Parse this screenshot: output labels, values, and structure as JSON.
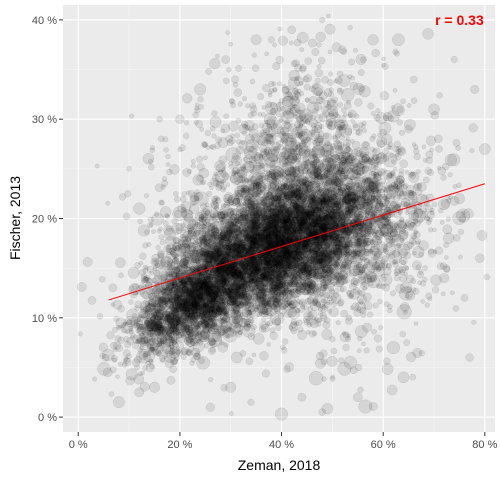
{
  "chart_data": {
    "type": "scatter",
    "title": "",
    "xlabel": "Zeman, 2018",
    "ylabel": "Fischer, 2013",
    "xlim": [
      -3,
      82
    ],
    "ylim": [
      -1.5,
      41.5
    ],
    "x_ticks": [
      0,
      20,
      40,
      60,
      80
    ],
    "x_tick_labels": [
      "0 %",
      "20 %",
      "40 %",
      "60 %",
      "80 %"
    ],
    "y_ticks": [
      0,
      10,
      20,
      30,
      40
    ],
    "y_tick_labels": [
      "0 %",
      "10 %",
      "20 %",
      "30 %",
      "40 %"
    ],
    "grid": true,
    "legend": "none",
    "annotation": {
      "text": "r = 0.33",
      "x": 75,
      "y": 40,
      "color": "#ff0000"
    },
    "trend_line": {
      "x": [
        6,
        80
      ],
      "y": [
        11.8,
        23.5
      ],
      "color": "#ff0000"
    },
    "point_style": {
      "color": "#000000",
      "opacity": 0.09,
      "outline_opacity": 0.12
    },
    "point_clusters": [
      {
        "cx": 40,
        "cy": 17.5,
        "sx": 11,
        "sy": 3.8,
        "rho": 0.5,
        "n": 5200,
        "seed": 11
      },
      {
        "cx": 22,
        "cy": 11,
        "sx": 6,
        "sy": 2.6,
        "rho": 0.6,
        "n": 1300,
        "seed": 23
      },
      {
        "cx": 44,
        "cy": 27,
        "sx": 8,
        "sy": 5,
        "rho": 0.15,
        "n": 650,
        "seed": 37
      },
      {
        "cx": 55,
        "cy": 17,
        "sx": 10,
        "sy": 6,
        "rho": 0.1,
        "n": 650,
        "seed": 53
      },
      {
        "cx": 30,
        "cy": 22,
        "sx": 10,
        "sy": 6,
        "rho": 0.2,
        "n": 380,
        "seed": 71
      }
    ],
    "outlier_points": [
      {
        "x": 7,
        "y": 7.2
      },
      {
        "x": 8,
        "y": 1.5
      },
      {
        "x": 12,
        "y": 2.5
      },
      {
        "x": 15,
        "y": 3
      },
      {
        "x": 10,
        "y": 25
      },
      {
        "x": 12,
        "y": 21
      },
      {
        "x": 17,
        "y": 24
      },
      {
        "x": 16,
        "y": 30
      },
      {
        "x": 29,
        "y": 36
      },
      {
        "x": 35,
        "y": 38
      },
      {
        "x": 42,
        "y": 39
      },
      {
        "x": 48,
        "y": 40
      },
      {
        "x": 52,
        "y": 37
      },
      {
        "x": 58,
        "y": 38
      },
      {
        "x": 66,
        "y": 34
      },
      {
        "x": 74,
        "y": 36
      },
      {
        "x": 78,
        "y": 33
      },
      {
        "x": 80,
        "y": 27
      },
      {
        "x": 79,
        "y": 16
      },
      {
        "x": 76,
        "y": 12
      },
      {
        "x": 72,
        "y": 14
      },
      {
        "x": 70,
        "y": 31
      },
      {
        "x": 77,
        "y": 6
      },
      {
        "x": 64,
        "y": 4
      },
      {
        "x": 62,
        "y": 7
      },
      {
        "x": 55,
        "y": 2
      },
      {
        "x": 48,
        "y": 0.5
      },
      {
        "x": 40,
        "y": 0.3
      },
      {
        "x": 34,
        "y": 1.5
      },
      {
        "x": 26,
        "y": 1
      },
      {
        "x": 30,
        "y": 3
      },
      {
        "x": 44,
        "y": 2
      },
      {
        "x": 69,
        "y": 21
      },
      {
        "x": 71,
        "y": 27
      },
      {
        "x": 75,
        "y": 22
      },
      {
        "x": 65,
        "y": 29
      },
      {
        "x": 63,
        "y": 38
      },
      {
        "x": 38,
        "y": 38
      },
      {
        "x": 24,
        "y": 33
      },
      {
        "x": 20,
        "y": 30
      }
    ]
  }
}
